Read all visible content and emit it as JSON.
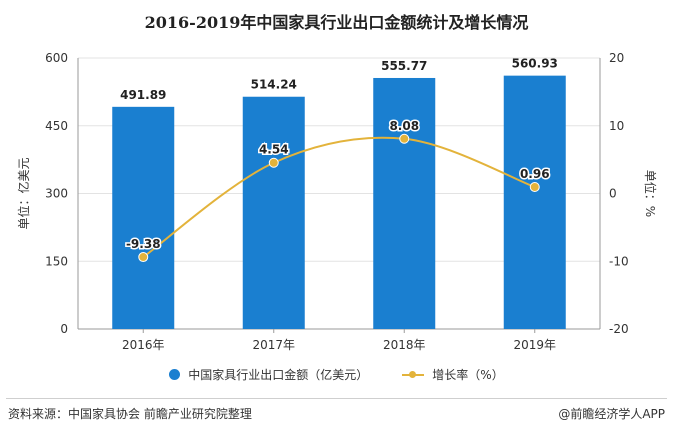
{
  "chart_data": {
    "type": "bar",
    "title": "2016-2019年中国家具行业出口金额统计及增长情况",
    "categories": [
      "2016年",
      "2017年",
      "2018年",
      "2019年"
    ],
    "series": [
      {
        "name": "中国家具行业出口金额（亿美元）",
        "type": "bar",
        "axis": "left",
        "values": [
          491.89,
          514.24,
          555.77,
          560.93
        ],
        "color": "#1a7fd0"
      },
      {
        "name": "增长率（%）",
        "type": "line",
        "axis": "right",
        "values": [
          -9.38,
          4.54,
          8.08,
          0.96
        ],
        "color": "#e3b33b"
      }
    ],
    "data_labels": {
      "bars": [
        "491.89",
        "514.24",
        "555.77",
        "560.93"
      ],
      "line": [
        "-9.38",
        "4.54",
        "8.08",
        "0.96"
      ]
    },
    "ylabel_left": "单位：亿美元",
    "ylabel_right": "单位：%",
    "ylim_left": [
      0,
      600
    ],
    "yticks_left": [
      "0",
      "150",
      "300",
      "450",
      "600"
    ],
    "ylim_right": [
      -20,
      20
    ],
    "yticks_right": [
      "-20",
      "-10",
      "0",
      "10",
      "20"
    ],
    "grid": "horizontal",
    "legend": "bottom"
  },
  "footer": {
    "source": "资料来源：中国家具协会 前瞻产业研究院整理",
    "brand": "@前瞻经济学人APP"
  }
}
